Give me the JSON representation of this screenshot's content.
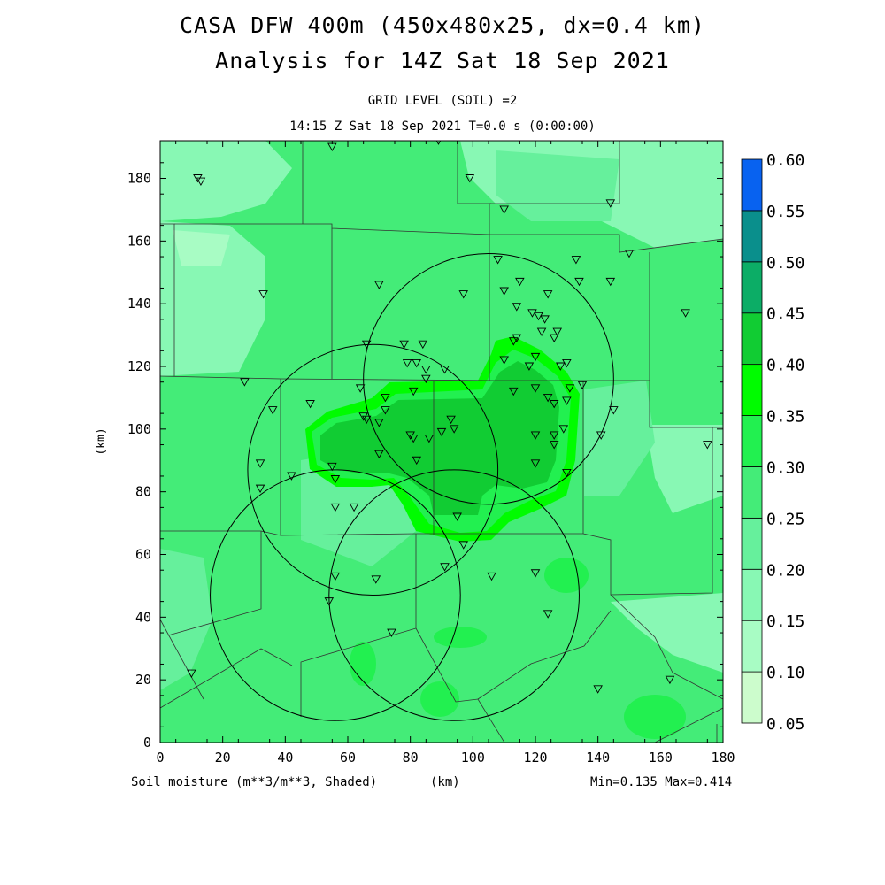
{
  "header": {
    "title_line1": "CASA DFW 400m (450x480x25, dx=0.4 km)",
    "title_line2": "Analysis for 14Z Sat 18 Sep 2021",
    "subtitle_line1": "GRID LEVEL (SOIL) =2",
    "subtitle_line2": "14:15 Z Sat 18 Sep 2021   T=0.0 s (0:00:00)"
  },
  "footer": {
    "field_label": "Soil moisture (m**3/m**3, Shaded)",
    "units_label": "(km)",
    "minmax": "Min=0.135 Max=0.414"
  },
  "chart_data": {
    "type": "heatmap",
    "xlabel": "",
    "ylabel": "(km)",
    "x_units_label": "(km)",
    "xlim": [
      0,
      180
    ],
    "ylim": [
      0,
      192
    ],
    "x_ticks": [
      0,
      20,
      40,
      60,
      80,
      100,
      120,
      140,
      160,
      180
    ],
    "y_ticks": [
      0,
      20,
      40,
      60,
      80,
      100,
      120,
      140,
      160,
      180
    ],
    "colorbar": {
      "levels": [
        "0.05",
        "0.10",
        "0.15",
        "0.20",
        "0.25",
        "0.30",
        "0.35",
        "0.40",
        "0.45",
        "0.50",
        "0.55",
        "0.60"
      ],
      "colors": [
        "#ccfccc",
        "#a8fcc4",
        "#88f8b4",
        "#66f09c",
        "#44ec78",
        "#22f050",
        "#00fc00",
        "#11cc33",
        "#0cad66",
        "#0a8f8c",
        "#0862f0"
      ]
    },
    "field": {
      "background_level_color": "#44ec78",
      "min": 0.135,
      "max": 0.414
    },
    "radar_rings": [
      {
        "center": [
          94,
          47
        ],
        "radius": 40
      },
      {
        "center": [
          56,
          47
        ],
        "radius": 40
      },
      {
        "center": [
          68,
          87
        ],
        "radius": 40
      },
      {
        "center": [
          105,
          116
        ],
        "radius": 40
      }
    ],
    "stations": [
      [
        12,
        180
      ],
      [
        13,
        179
      ],
      [
        55,
        190
      ],
      [
        89,
        192
      ],
      [
        99,
        180
      ],
      [
        110,
        170
      ],
      [
        144,
        172
      ],
      [
        150,
        156
      ],
      [
        33,
        143
      ],
      [
        70,
        146
      ],
      [
        108,
        154
      ],
      [
        115,
        147
      ],
      [
        133,
        154
      ],
      [
        134,
        147
      ],
      [
        144,
        147
      ],
      [
        124,
        143
      ],
      [
        97,
        143
      ],
      [
        110,
        144
      ],
      [
        114,
        139
      ],
      [
        119,
        137
      ],
      [
        121,
        136
      ],
      [
        123,
        135
      ],
      [
        122,
        131
      ],
      [
        127,
        131
      ],
      [
        126,
        129
      ],
      [
        114,
        129
      ],
      [
        113,
        128
      ],
      [
        168,
        137
      ],
      [
        66,
        127
      ],
      [
        78,
        127
      ],
      [
        84,
        127
      ],
      [
        82,
        121
      ],
      [
        79,
        121
      ],
      [
        85,
        119
      ],
      [
        91,
        119
      ],
      [
        110,
        122
      ],
      [
        120,
        123
      ],
      [
        118,
        120
      ],
      [
        130,
        121
      ],
      [
        128,
        120
      ],
      [
        135,
        114
      ],
      [
        131,
        113
      ],
      [
        27,
        115
      ],
      [
        64,
        113
      ],
      [
        81,
        112
      ],
      [
        85,
        116
      ],
      [
        113,
        112
      ],
      [
        120,
        113
      ],
      [
        124,
        110
      ],
      [
        126,
        108
      ],
      [
        130,
        109
      ],
      [
        72,
        110
      ],
      [
        72,
        106
      ],
      [
        48,
        108
      ],
      [
        36,
        106
      ],
      [
        66,
        103
      ],
      [
        65,
        104
      ],
      [
        70,
        102
      ],
      [
        145,
        106
      ],
      [
        93,
        103
      ],
      [
        94,
        100
      ],
      [
        90,
        99
      ],
      [
        86,
        97
      ],
      [
        80,
        98
      ],
      [
        81,
        97
      ],
      [
        141,
        98
      ],
      [
        126,
        98
      ],
      [
        120,
        98
      ],
      [
        129,
        100
      ],
      [
        175,
        95
      ],
      [
        126,
        95
      ],
      [
        32,
        89
      ],
      [
        55,
        88
      ],
      [
        70,
        92
      ],
      [
        82,
        90
      ],
      [
        120,
        89
      ],
      [
        130,
        86
      ],
      [
        56,
        84
      ],
      [
        42,
        85
      ],
      [
        32,
        81
      ],
      [
        56,
        75
      ],
      [
        62,
        75
      ],
      [
        95,
        72
      ],
      [
        97,
        63
      ],
      [
        56,
        53
      ],
      [
        69,
        52
      ],
      [
        91,
        56
      ],
      [
        106,
        53
      ],
      [
        120,
        54
      ],
      [
        54,
        45
      ],
      [
        124,
        41
      ],
      [
        74,
        35
      ],
      [
        10,
        22
      ],
      [
        140,
        17
      ],
      [
        163,
        20
      ]
    ]
  }
}
